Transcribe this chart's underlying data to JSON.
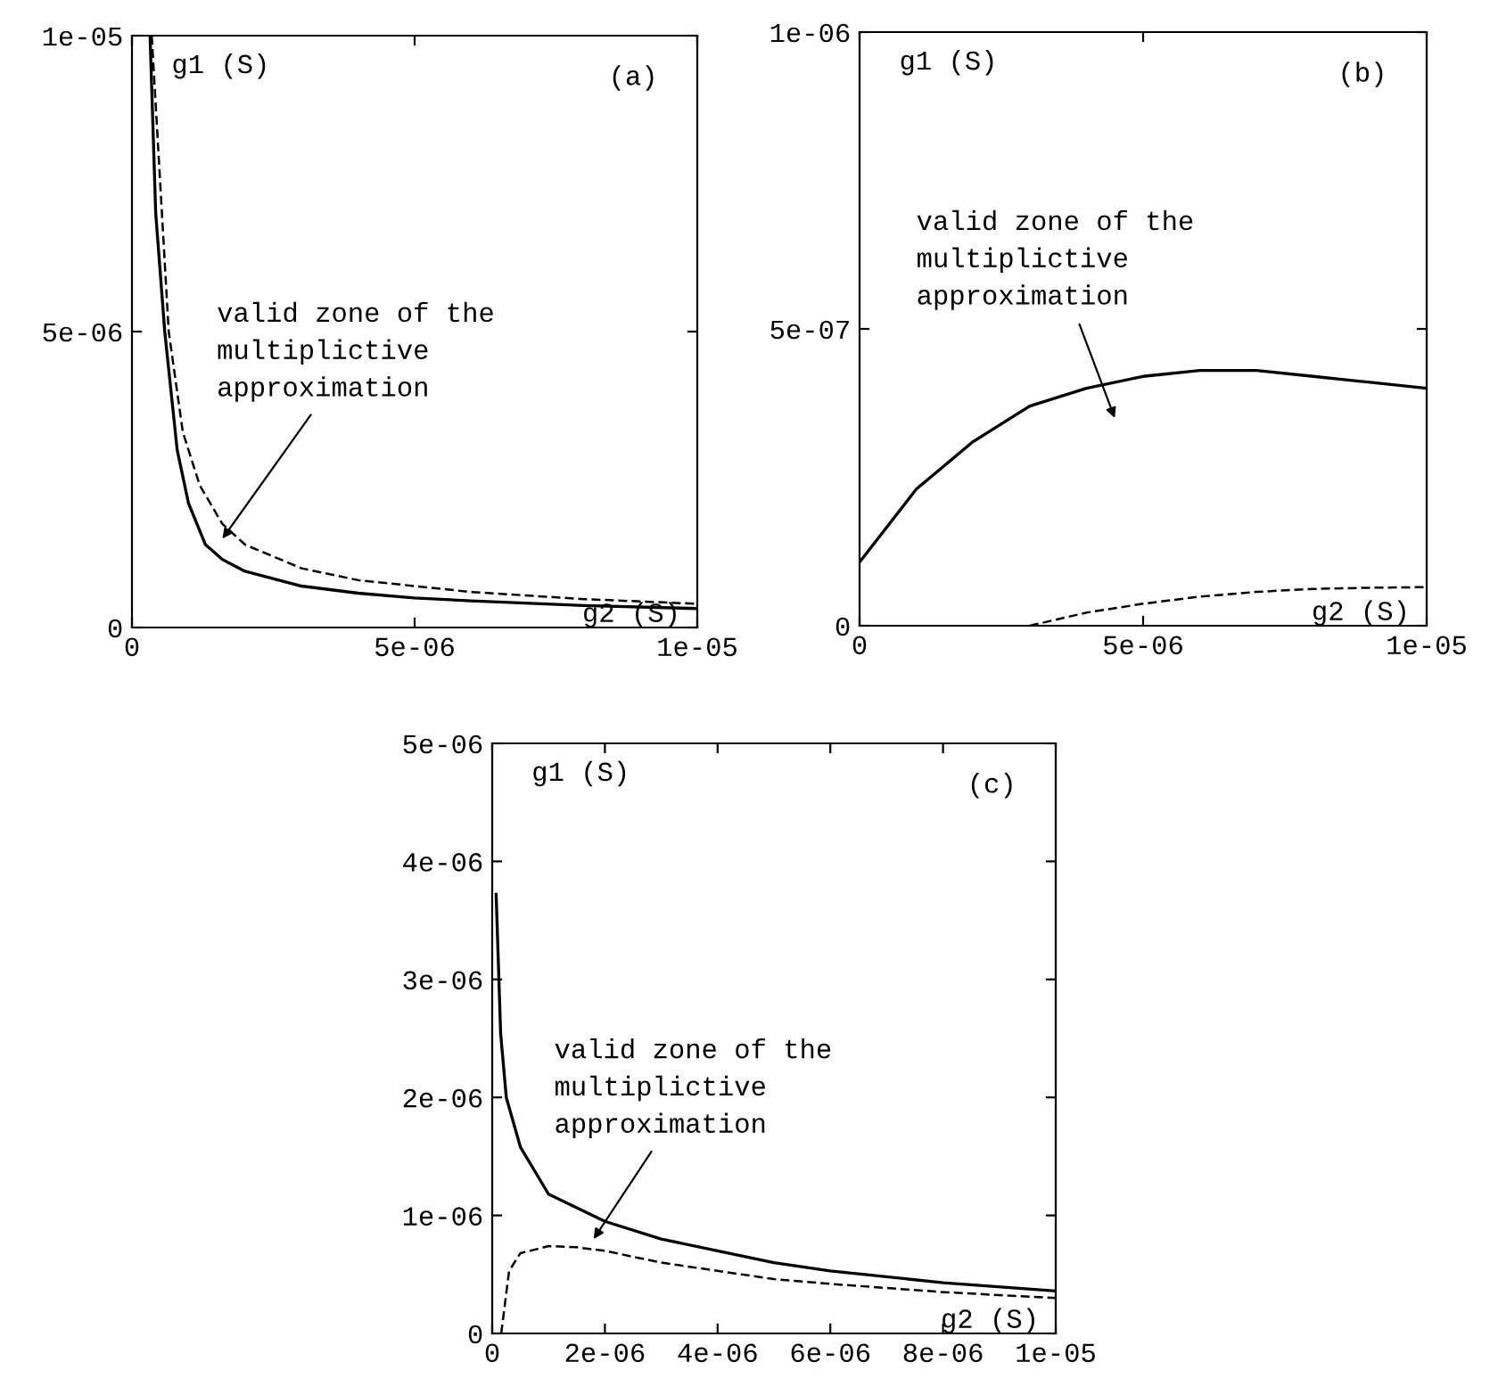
{
  "chart_data": [
    {
      "type": "line",
      "xlabel": "g2 (S)",
      "ylabel": "g1 (S)",
      "xlim": [
        0,
        1e-05
      ],
      "ylim": [
        0,
        1e-05
      ],
      "xticks": [
        0,
        {
          "value": 5e-06,
          "label": "5e-06"
        },
        {
          "value": 1e-05,
          "label": "1e-05"
        }
      ],
      "yticks": [
        0,
        {
          "value": 5e-06,
          "label": "5e-06"
        },
        {
          "value": 1e-05,
          "label": "1e-05"
        }
      ],
      "series": [
        {
          "color": "#000000",
          "line_style": "solid",
          "x": [
            3.2e-07,
            4.2e-07,
            5.8e-07,
            8e-07,
            1e-06,
            1.3e-06,
            1.6e-06,
            2e-06,
            3e-06,
            4e-06,
            5e-06,
            6e-06,
            8e-06,
            1e-05
          ],
          "values": [
            1e-05,
            7e-06,
            5e-06,
            3e-06,
            2.1e-06,
            1.4e-06,
            1.15e-06,
            9.5e-07,
            7e-07,
            5.8e-07,
            5e-07,
            4.5e-07,
            3.7e-07,
            3.2e-07
          ]
        },
        {
          "color": "#000000",
          "line_style": "dashed",
          "x": [
            3.5e-07,
            6.5e-07,
            9e-07,
            1.2e-06,
            1.6e-06,
            2e-06,
            3e-06,
            4e-06,
            5e-06,
            6e-06,
            8e-06,
            1e-05
          ],
          "values": [
            1e-05,
            5e-06,
            3.3e-06,
            2.4e-06,
            1.75e-06,
            1.4e-06,
            1e-06,
            8e-07,
            7e-07,
            6e-07,
            4.8e-07,
            4e-07
          ]
        }
      ],
      "annotations": [
        "(a)",
        "valid zone of the\nmultiplictive\napproximation"
      ]
    },
    {
      "type": "line",
      "xlabel": "g2 (S)",
      "ylabel": "g1 (S)",
      "xlim": [
        0,
        1e-05
      ],
      "ylim": [
        0,
        1e-06
      ],
      "xticks": [
        0,
        {
          "value": 5e-06,
          "label": "5e-06"
        },
        {
          "value": 1e-05,
          "label": "1e-05"
        }
      ],
      "yticks": [
        0,
        {
          "value": 5e-07,
          "label": "5e-07"
        },
        {
          "value": 1e-06,
          "label": "1e-06"
        }
      ],
      "series": [
        {
          "color": "#000000",
          "line_style": "solid",
          "x": [
            0,
            1e-06,
            2e-06,
            3e-06,
            4e-06,
            5e-06,
            6e-06,
            7e-06,
            8e-06,
            9e-06,
            1e-05
          ],
          "values": [
            1.07e-07,
            2.3e-07,
            3.1e-07,
            3.7e-07,
            4e-07,
            4.2e-07,
            4.3e-07,
            4.3e-07,
            4.2e-07,
            4.1e-07,
            4e-07
          ]
        },
        {
          "color": "#000000",
          "line_style": "dashed",
          "x": [
            3e-06,
            4e-06,
            5e-06,
            6e-06,
            7e-06,
            8e-06,
            9e-06,
            1e-05
          ],
          "values": [
            0,
            2.2e-08,
            3.7e-08,
            4.9e-08,
            5.7e-08,
            6.2e-08,
            6.4e-08,
            6.5e-08
          ]
        }
      ],
      "annotations": [
        "(b)",
        "valid zone of the\nmultiplictive\napproximation"
      ]
    },
    {
      "type": "line",
      "xlabel": "g2 (S)",
      "ylabel": "g1 (S)",
      "xlim": [
        0,
        1e-05
      ],
      "ylim": [
        0,
        5e-06
      ],
      "xticks": [
        0,
        {
          "value": 2e-06,
          "label": "2e-06"
        },
        {
          "value": 4e-06,
          "label": "4e-06"
        },
        {
          "value": 6e-06,
          "label": "6e-06"
        },
        {
          "value": 8e-06,
          "label": "8e-06"
        },
        {
          "value": 1e-05,
          "label": "1e-05"
        }
      ],
      "yticks": [
        0,
        {
          "value": 1e-06,
          "label": "1e-06"
        },
        {
          "value": 2e-06,
          "label": "2e-06"
        },
        {
          "value": 3e-06,
          "label": "3e-06"
        },
        {
          "value": 4e-06,
          "label": "4e-06"
        },
        {
          "value": 5e-06,
          "label": "5e-06"
        }
      ],
      "series": [
        {
          "color": "#000000",
          "line_style": "solid",
          "x": [
            7e-08,
            1.5e-07,
            2.5e-07,
            5e-07,
            1e-06,
            2e-06,
            3e-06,
            4e-06,
            5e-06,
            6e-06,
            8e-06,
            1e-05
          ],
          "values": [
            3.72e-06,
            2.54e-06,
            2e-06,
            1.58e-06,
            1.18e-06,
            9.5e-07,
            8e-07,
            7e-07,
            6e-07,
            5.3e-07,
            4.3e-07,
            3.6e-07
          ]
        },
        {
          "color": "#000000",
          "line_style": "dashed",
          "x": [
            1.6e-07,
            3e-07,
            5e-07,
            1e-06,
            1.5e-06,
            2e-06,
            3e-06,
            4e-06,
            5e-06,
            6e-06,
            8e-06,
            1e-05
          ],
          "values": [
            0,
            5.3e-07,
            6.8e-07,
            7.4e-07,
            7.3e-07,
            7e-07,
            6e-07,
            5.3e-07,
            4.6e-07,
            4.2e-07,
            3.5e-07,
            3e-07
          ]
        }
      ],
      "annotations": [
        "(c)",
        "valid zone of the\nmultiplictive\napproximation"
      ]
    }
  ]
}
